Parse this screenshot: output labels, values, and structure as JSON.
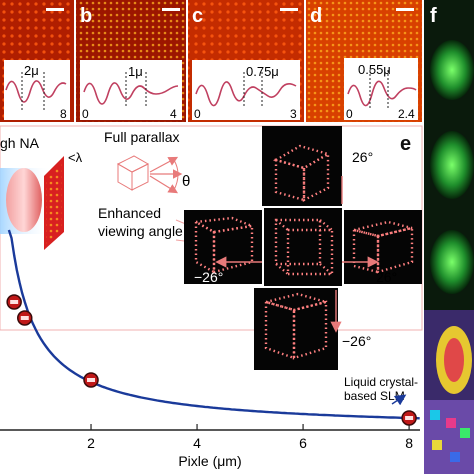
{
  "panels": {
    "b": {
      "letter": "b",
      "value": "2μ",
      "tick_right": "8"
    },
    "bb": {
      "letter": "b",
      "value": "1μ",
      "tick_left": "0",
      "tick_right": "4"
    },
    "c": {
      "letter": "c",
      "value": "0.75μ",
      "tick_left": "0",
      "tick_right": "3"
    },
    "d": {
      "letter": "d",
      "value": "0.55μ",
      "tick_left": "0",
      "tick_right": "2.4"
    },
    "e": {
      "letter": "e"
    },
    "f": {
      "letter": "f"
    }
  },
  "schematic": {
    "na_label": "gh NA",
    "lambda_label": "<λ",
    "full_parallax": "Full parallax",
    "theta": "θ",
    "enhanced_line1": "Enhanced",
    "enhanced_line2": "viewing angle"
  },
  "cube_angles": {
    "top": "26°",
    "left": "−26°",
    "right": "26°",
    "bottom": "−26°"
  },
  "slm_label": {
    "line1": "Liquid crystal-",
    "line2": "based SLM"
  },
  "chart_data": {
    "type": "scatter",
    "xlabel": "Pixle (μm)",
    "x_ticks": [
      "2",
      "4",
      "6",
      "8"
    ],
    "xlim": [
      0,
      8.3
    ],
    "points": [
      {
        "x": 0.55,
        "y": 64
      },
      {
        "x": 0.75,
        "y": 56
      },
      {
        "x": 2.0,
        "y": 25
      },
      {
        "x": 8.0,
        "y": 6
      }
    ],
    "curve": {
      "model": "1/x",
      "coefficient": 48,
      "color": "#1a3a9a"
    },
    "annotation_point_x": 8.0
  },
  "colors": {
    "heat_dark": "#7a0a00",
    "heat_mid": "#d83a00",
    "heat_bright": "#ffd24a",
    "green_panel": "#1a8a2a",
    "curve": "#1a3a9a",
    "pink": "#e87a7a"
  }
}
